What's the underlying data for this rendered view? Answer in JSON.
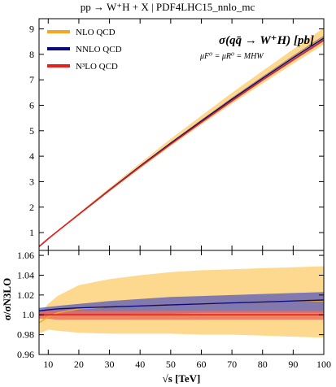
{
  "chart_data": [
    {
      "type": "line",
      "title": "pp → W⁺H + X | PDF4LHC15_nnlo_mc",
      "annotation": "σ(qq̄ → W⁺H) [pb]",
      "annotation_sub": "μF⁰ = μR⁰ = MHW",
      "xlabel": "",
      "ylabel": "",
      "xlim": [
        7,
        100
      ],
      "ylim": [
        0.3,
        9.4
      ],
      "yticks": [
        1,
        2,
        3,
        4,
        5,
        6,
        7,
        8,
        9
      ],
      "legend": "top-left",
      "x": [
        7,
        10,
        13,
        20,
        30,
        40,
        50,
        60,
        70,
        80,
        90,
        100
      ],
      "series": [
        {
          "name": "NLO QCD",
          "color": "#f5a623",
          "values": [
            0.45,
            0.76,
            1.05,
            1.72,
            2.68,
            3.61,
            4.52,
            5.39,
            6.26,
            7.08,
            7.9,
            8.68
          ],
          "lower": [
            0.44,
            0.74,
            1.03,
            1.69,
            2.62,
            3.52,
            4.4,
            5.24,
            6.06,
            6.85,
            7.63,
            8.38
          ],
          "upper": [
            0.46,
            0.78,
            1.08,
            1.77,
            2.76,
            3.73,
            4.68,
            5.59,
            6.49,
            7.35,
            8.2,
            9.04
          ]
        },
        {
          "name": "NNLO QCD",
          "color": "#0a0a7e",
          "values": [
            0.45,
            0.76,
            1.05,
            1.72,
            2.68,
            3.61,
            4.51,
            5.38,
            6.24,
            7.06,
            7.87,
            8.64
          ],
          "lower": [
            0.45,
            0.76,
            1.04,
            1.71,
            2.66,
            3.58,
            4.48,
            5.34,
            6.19,
            7.0,
            7.8,
            8.56
          ],
          "upper": [
            0.46,
            0.77,
            1.06,
            1.73,
            2.7,
            3.64,
            4.55,
            5.43,
            6.3,
            7.13,
            7.95,
            8.74
          ]
        },
        {
          "name": "N³LO QCD",
          "color": "#e8201c",
          "values": [
            0.45,
            0.76,
            1.05,
            1.71,
            2.66,
            3.58,
            4.47,
            5.33,
            6.17,
            6.99,
            7.78,
            8.55
          ],
          "lower": [
            0.45,
            0.76,
            1.04,
            1.7,
            2.65,
            3.56,
            4.45,
            5.31,
            6.15,
            6.96,
            7.75,
            8.52
          ],
          "upper": [
            0.45,
            0.76,
            1.05,
            1.71,
            2.67,
            3.59,
            4.49,
            5.35,
            6.19,
            7.01,
            7.81,
            8.58
          ]
        }
      ]
    },
    {
      "type": "line",
      "xlabel": "√s [TeV]",
      "ylabel": "σ/σN3LO",
      "xlim": [
        7,
        100
      ],
      "ylim": [
        0.96,
        1.065
      ],
      "xticks": [
        10,
        20,
        30,
        40,
        50,
        60,
        70,
        80,
        90,
        100
      ],
      "yticks": [
        0.96,
        0.98,
        1.0,
        1.02,
        1.04,
        1.06
      ],
      "x": [
        7,
        10,
        13,
        20,
        30,
        40,
        50,
        60,
        70,
        80,
        90,
        100
      ],
      "series": [
        {
          "name": "NLO QCD",
          "color": "#f5a623",
          "values": [
            0.992,
            0.998,
            1.002,
            1.006,
            1.008,
            1.009,
            1.01,
            1.011,
            1.012,
            1.013,
            1.014,
            1.014
          ],
          "lower": [
            0.981,
            0.985,
            0.984,
            0.982,
            0.981,
            0.981,
            0.981,
            0.98,
            0.98,
            0.979,
            0.978,
            0.977
          ],
          "upper": [
            1.0,
            1.011,
            1.019,
            1.03,
            1.036,
            1.04,
            1.043,
            1.045,
            1.046,
            1.047,
            1.048,
            1.049
          ]
        },
        {
          "name": "NNLO QCD",
          "color": "#0a0a7e",
          "values": [
            1.004,
            1.005,
            1.006,
            1.007,
            1.008,
            1.009,
            1.01,
            1.011,
            1.012,
            1.013,
            1.014,
            1.015
          ],
          "lower": [
            0.999,
            0.999,
            1.0,
            1.0,
            1.0,
            1.001,
            1.001,
            1.002,
            1.002,
            1.002,
            1.002,
            1.002
          ],
          "upper": [
            1.007,
            1.008,
            1.009,
            1.011,
            1.014,
            1.016,
            1.018,
            1.019,
            1.02,
            1.021,
            1.022,
            1.023
          ]
        },
        {
          "name": "N³LO QCD",
          "color": "#e8201c",
          "values": [
            1.0,
            1.0,
            1.0,
            1.0,
            1.0,
            1.0,
            1.0,
            1.0,
            1.0,
            1.0,
            1.0,
            1.0
          ],
          "lower": [
            0.996,
            0.996,
            0.995,
            0.995,
            0.995,
            0.995,
            0.995,
            0.995,
            0.995,
            0.995,
            0.995,
            0.995
          ],
          "upper": [
            1.003,
            1.004,
            1.004,
            1.004,
            1.004,
            1.004,
            1.004,
            1.004,
            1.004,
            1.004,
            1.004,
            1.004
          ]
        }
      ]
    }
  ]
}
